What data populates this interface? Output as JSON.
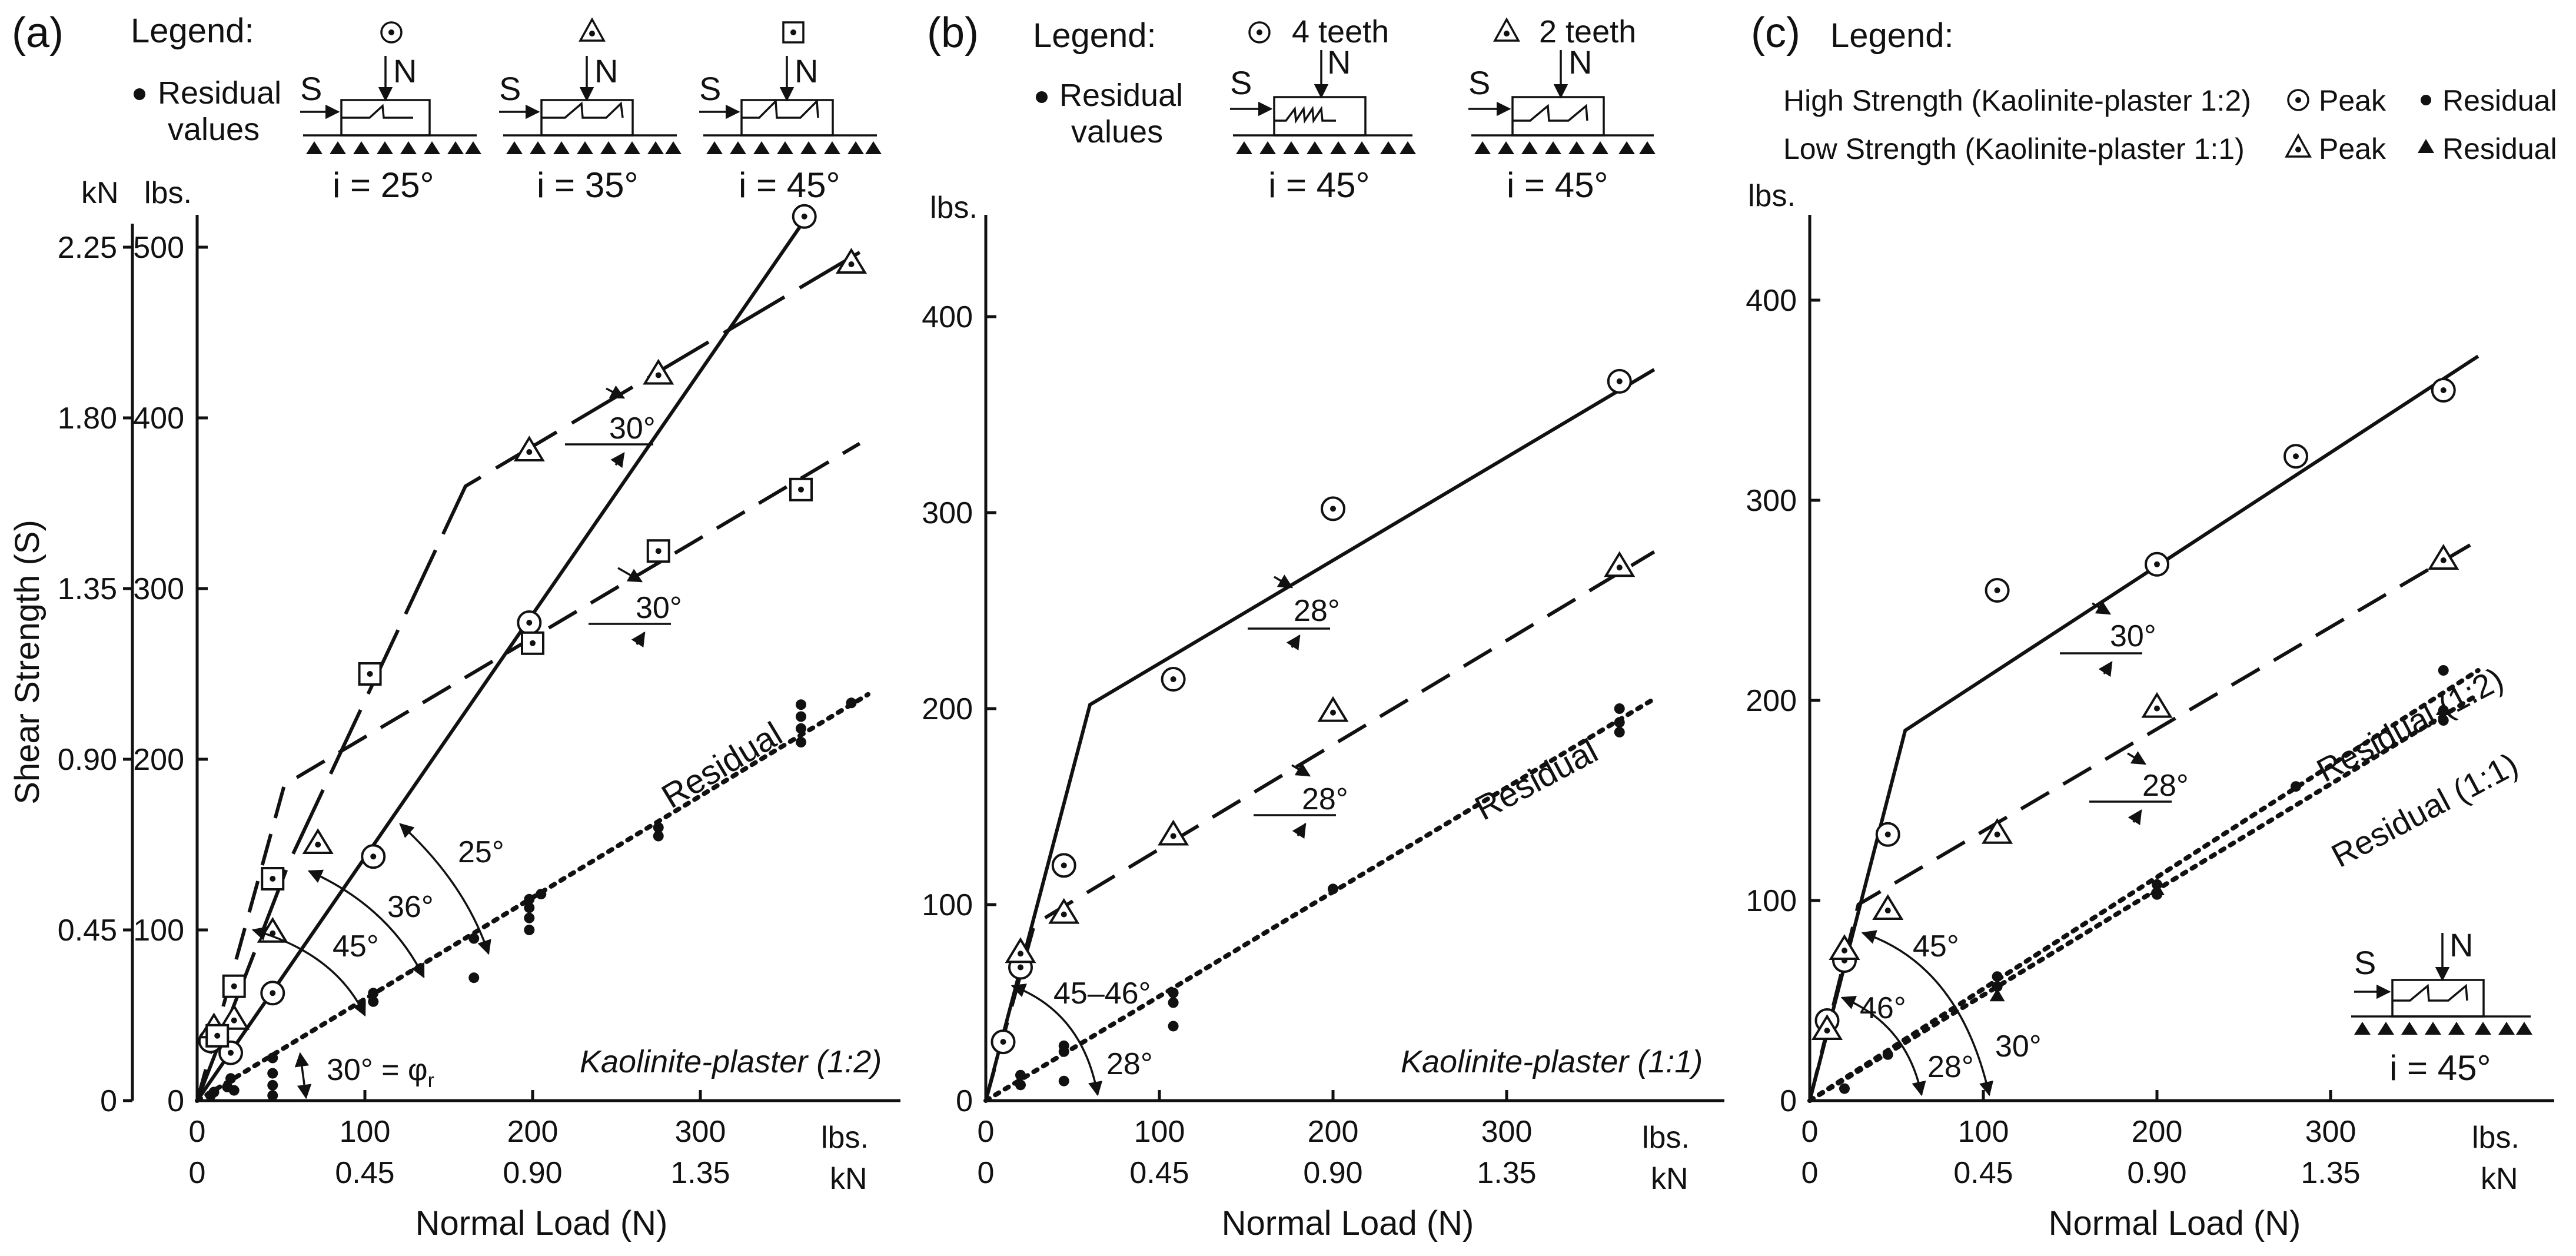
{
  "colors": {
    "ink": "#111111",
    "background": "#ffffff"
  },
  "chart_data": [
    {
      "type": "scatter",
      "panel_label": "(a)",
      "legend_title": "Legend:",
      "residual_legend": [
        "Residual",
        "values"
      ],
      "legend_specimens": [
        {
          "marker": "circle-dot",
          "angle_label": "i = 25°"
        },
        {
          "marker": "triangle-dot",
          "angle_label": "i = 35°"
        },
        {
          "marker": "square-dot",
          "angle_label": "i = 45°"
        }
      ],
      "sketch_labels": {
        "shear": "S",
        "normal": "N"
      },
      "material": "Kaolinite-plaster (1:2)",
      "xlabel": "Normal Load (N)",
      "ylabel": "Shear Strength (S)",
      "x_unit_lbs": "lbs.",
      "x_unit_kn": "kN",
      "y_unit_lbs": "lbs.",
      "y_unit_kn": "kN",
      "xlim": [
        0,
        400
      ],
      "ylim": [
        0,
        530
      ],
      "x_ticks_lbs": [
        0,
        100,
        200,
        300
      ],
      "x_ticks_kn": [
        "0",
        "0.45",
        "0.90",
        "1.35"
      ],
      "y_ticks_lbs": [
        0,
        100,
        200,
        300,
        400,
        500
      ],
      "y_ticks_kn": [
        "0",
        "0.45",
        "0.90",
        "1.35",
        "1.80",
        "2.25"
      ],
      "series": [
        {
          "name": "i = 25° peak",
          "marker": "circle-dot",
          "line": "solid",
          "points": [
            [
              8,
              35
            ],
            [
              20,
              28
            ],
            [
              45,
              63
            ],
            [
              105,
              143
            ],
            [
              198,
              280
            ],
            [
              362,
              518
            ]
          ],
          "line_points": [
            [
              0,
              0
            ],
            [
              365,
              520
            ]
          ]
        },
        {
          "name": "i = 35° peak",
          "marker": "triangle-dot",
          "line": "longdash",
          "points": [
            [
              10,
              42
            ],
            [
              22,
              47
            ],
            [
              45,
              98
            ],
            [
              72,
              150
            ],
            [
              198,
              380
            ],
            [
              275,
              425
            ],
            [
              390,
              490
            ]
          ],
          "line_points": [
            [
              0,
              0
            ],
            [
              55,
              140
            ],
            [
              160,
              360
            ],
            [
              395,
              497
            ]
          ]
        },
        {
          "name": "i = 45° peak",
          "marker": "square-dot",
          "line": "dash",
          "points": [
            [
              12,
              38
            ],
            [
              22,
              67
            ],
            [
              45,
              130
            ],
            [
              103,
              250
            ],
            [
              200,
              268
            ],
            [
              275,
              322
            ],
            [
              360,
              358
            ]
          ],
          "line_points": [
            [
              0,
              0
            ],
            [
              38,
              135
            ],
            [
              52,
              185
            ],
            [
              395,
              385
            ]
          ]
        },
        {
          "name": "Residual",
          "marker": "dot",
          "line": "dotted",
          "points": [
            [
              8,
              3
            ],
            [
              10,
              5
            ],
            [
              18,
              8
            ],
            [
              20,
              13
            ],
            [
              22,
              6
            ],
            [
              45,
              3
            ],
            [
              45,
              9
            ],
            [
              45,
              16
            ],
            [
              45,
              25
            ],
            [
              105,
              58
            ],
            [
              105,
              63
            ],
            [
              165,
              72
            ],
            [
              165,
              95
            ],
            [
              198,
              100
            ],
            [
              198,
              107
            ],
            [
              198,
              113
            ],
            [
              198,
              118
            ],
            [
              205,
              121
            ],
            [
              275,
              155
            ],
            [
              275,
              160
            ],
            [
              360,
              210
            ],
            [
              360,
              218
            ],
            [
              360,
              225
            ],
            [
              360,
              232
            ],
            [
              390,
              233
            ]
          ],
          "line_points": [
            [
              0,
              0
            ],
            [
              400,
              238
            ]
          ]
        }
      ],
      "annotations": {
        "residual_label": "Residual",
        "angle_30_a": "30°",
        "angle_30_b": "30°",
        "angle_25": "25°",
        "angle_36": "36°",
        "angle_45": "45°",
        "phi_r": "30° = φ",
        "phi_sub": "r"
      }
    },
    {
      "type": "scatter",
      "panel_label": "(b)",
      "legend_title": "Legend:",
      "residual_legend": [
        "Residual",
        "values"
      ],
      "legend_specimens": [
        {
          "marker": "circle-dot",
          "teeth_label": "4 teeth",
          "angle_label": "i = 45°"
        },
        {
          "marker": "triangle-dot",
          "teeth_label": "2 teeth",
          "angle_label": "i = 45°"
        }
      ],
      "sketch_labels": {
        "shear": "S",
        "normal": "N"
      },
      "material": "Kaolinite-plaster (1:1)",
      "xlabel": "Normal Load (N)",
      "x_unit_lbs": "lbs.",
      "x_unit_kn": "kN",
      "y_unit_lbs": "lbs.",
      "xlim": [
        0,
        400
      ],
      "ylim": [
        0,
        440
      ],
      "x_ticks_lbs": [
        0,
        100,
        200,
        300
      ],
      "x_ticks_kn": [
        "0",
        "0.45",
        "0.90",
        "1.35"
      ],
      "y_ticks_lbs": [
        0,
        100,
        200,
        300,
        400
      ],
      "series": [
        {
          "name": "4 teeth peak",
          "marker": "circle-dot",
          "line": "solid",
          "points": [
            [
              10,
              30
            ],
            [
              20,
              68
            ],
            [
              45,
              120
            ],
            [
              108,
              215
            ],
            [
              200,
              302
            ],
            [
              365,
              367
            ]
          ],
          "line_points": [
            [
              0,
              0
            ],
            [
              60,
              202
            ],
            [
              385,
              373
            ]
          ]
        },
        {
          "name": "2 teeth peak",
          "marker": "triangle-dot",
          "line": "dash",
          "points": [
            [
              20,
              75
            ],
            [
              45,
              95
            ],
            [
              108,
              135
            ],
            [
              200,
              198
            ],
            [
              365,
              272
            ]
          ],
          "line_points": [
            [
              0,
              0
            ],
            [
              28,
              90
            ],
            [
              385,
              280
            ]
          ]
        },
        {
          "name": "Residual",
          "marker": "dot",
          "line": "dotted",
          "points": [
            [
              20,
              8
            ],
            [
              20,
              13
            ],
            [
              45,
              10
            ],
            [
              45,
              25
            ],
            [
              45,
              28
            ],
            [
              108,
              38
            ],
            [
              108,
              50
            ],
            [
              108,
              55
            ],
            [
              200,
              108
            ],
            [
              365,
              188
            ],
            [
              365,
              193
            ],
            [
              365,
              200
            ]
          ],
          "line_points": [
            [
              0,
              0
            ],
            [
              385,
              205
            ]
          ]
        }
      ],
      "annotations": {
        "residual_label": "Residual",
        "angle_28_a": "28°",
        "angle_28_b": "28°",
        "angle_4546": "45–46°",
        "angle_28_c": "28°"
      }
    },
    {
      "type": "scatter",
      "panel_label": "(c)",
      "legend_title": "Legend:",
      "legend_rows": [
        {
          "label": "High Strength (Kaolinite-plaster 1:2)",
          "peak_marker": "circle-dot",
          "peak_label": "Peak",
          "residual_marker": "dot",
          "residual_label": "Residual"
        },
        {
          "label": "Low Strength (Kaolinite-plaster 1:1)",
          "peak_marker": "triangle-dot",
          "peak_label": "Peak",
          "residual_marker": "filled-triangle",
          "residual_label": "Residual"
        }
      ],
      "inset": {
        "shear": "S",
        "normal": "N",
        "angle_label": "i = 45°"
      },
      "xlabel": "Normal Load (N)",
      "x_unit_lbs": "lbs.",
      "x_unit_kn": "kN",
      "y_unit_lbs": "lbs.",
      "xlim": [
        0,
        400
      ],
      "ylim": [
        0,
        440
      ],
      "x_ticks_lbs": [
        0,
        100,
        200,
        300
      ],
      "x_ticks_kn": [
        "0",
        "0.45",
        "0.90",
        "1.35"
      ],
      "y_ticks_lbs": [
        0,
        100,
        200,
        300,
        400
      ],
      "series": [
        {
          "name": "High Strength peak",
          "marker": "circle-dot",
          "line": "solid",
          "points": [
            [
              10,
              40
            ],
            [
              20,
              70
            ],
            [
              45,
              133
            ],
            [
              108,
              255
            ],
            [
              200,
              268
            ],
            [
              280,
              322
            ],
            [
              365,
              355
            ]
          ],
          "line_points": [
            [
              0,
              0
            ],
            [
              55,
              185
            ],
            [
              385,
              372
            ]
          ]
        },
        {
          "name": "Low Strength peak",
          "marker": "triangle-dot",
          "line": "dash",
          "points": [
            [
              10,
              35
            ],
            [
              20,
              75
            ],
            [
              45,
              95
            ],
            [
              108,
              133
            ],
            [
              200,
              196
            ],
            [
              365,
              270
            ]
          ],
          "line_points": [
            [
              0,
              0
            ],
            [
              28,
              98
            ],
            [
              385,
              280
            ]
          ]
        },
        {
          "name": "Residual (1:2)",
          "marker": "dot",
          "line": "dotted",
          "points": [
            [
              20,
              6
            ],
            [
              45,
              23
            ],
            [
              108,
              57
            ],
            [
              108,
              62
            ],
            [
              200,
              103
            ],
            [
              200,
              108
            ],
            [
              280,
              157
            ],
            [
              365,
              190
            ],
            [
              365,
              195
            ],
            [
              365,
              215
            ]
          ],
          "line_points": [
            [
              0,
              0
            ],
            [
              385,
              215
            ]
          ]
        },
        {
          "name": "Residual (1:1)",
          "marker": "filled-triangle",
          "line": "dotted",
          "points": [
            [
              108,
              52
            ],
            [
              200,
              105
            ],
            [
              365,
              195
            ]
          ],
          "line_points": [
            [
              0,
              0
            ],
            [
              385,
              203
            ]
          ]
        }
      ],
      "annotations": {
        "residual_12": "Residual (1:2)",
        "residual_11": "Residual (1:1)",
        "angle_30_slope": "30°",
        "angle_28_slope": "28°",
        "angle_45": "45°",
        "angle_46": "46°",
        "angle_28": "28°",
        "angle_30": "30°"
      }
    }
  ]
}
